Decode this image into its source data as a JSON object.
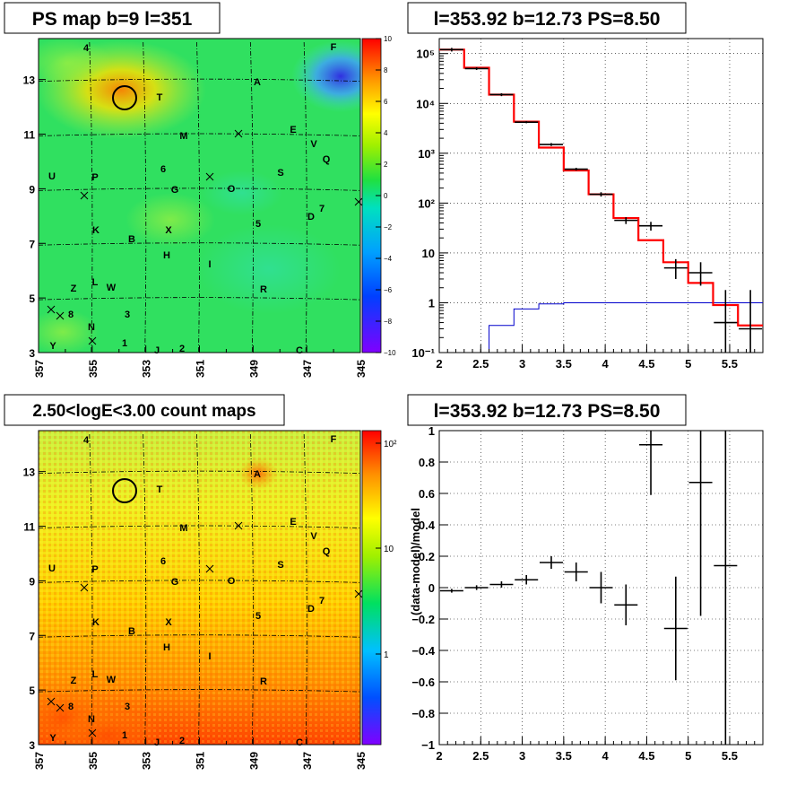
{
  "panels": {
    "map_top": {
      "title": "PS map b=9 l=351",
      "x_ticks": [
        "357",
        "355",
        "353",
        "351",
        "349",
        "347",
        "345"
      ],
      "y_ticks": [
        "3",
        "5",
        "7",
        "9",
        "11",
        "13"
      ],
      "colorbar_ticks": [
        "10",
        "8",
        "6",
        "4",
        "2",
        "0",
        "−2",
        "−4",
        "−6",
        "−8",
        "−10"
      ]
    },
    "map_bottom": {
      "title": "2.50<logE<3.00 count maps",
      "x_ticks": [
        "357",
        "355",
        "353",
        "351",
        "349",
        "347",
        "345"
      ],
      "y_ticks": [
        "3",
        "5",
        "7",
        "9",
        "11",
        "13"
      ],
      "colorbar_ticks": [
        "10²",
        "10",
        "1"
      ]
    },
    "spectrum": {
      "title": "l=353.92 b=12.73 PS=8.50"
    },
    "residual": {
      "title": "l=353.92 b=12.73 PS=8.50",
      "ylabel": "(data-model)/model"
    }
  },
  "source_labels": [
    "4",
    "F",
    "A",
    "T",
    "M",
    "E",
    "V",
    "Q",
    "6",
    "S",
    "G",
    "O",
    "U",
    "P",
    "7",
    "D",
    "5",
    "K",
    "X",
    "B",
    "H",
    "I",
    "Z",
    "L",
    "W",
    "R",
    "8",
    "3",
    "N",
    "Y",
    "1",
    "J",
    "2",
    "C"
  ],
  "colors": {
    "data": "#000000",
    "model": "#ff0000",
    "background_model": "#0000cc"
  },
  "chart_data": [
    {
      "type": "heatmap",
      "title": "PS map b=9 l=351",
      "xlim": [
        357,
        345
      ],
      "ylim": [
        3,
        14.5
      ],
      "zlim": [
        -10,
        10
      ],
      "colormap": "rainbow",
      "grid": true
    },
    {
      "type": "line",
      "title": "l=353.92 b=12.73 PS=8.50",
      "xlim": [
        2,
        5.9
      ],
      "ylim": [
        0.1,
        200000
      ],
      "ylog": true,
      "grid": true,
      "x_ticks": [
        2,
        2.5,
        3,
        3.5,
        4,
        4.5,
        5,
        5.5
      ],
      "y_ticks": [
        "10⁻¹",
        "1",
        "10",
        "10²",
        "10³",
        "10⁴",
        "10⁵"
      ],
      "series": [
        {
          "name": "data",
          "style": "errorbar",
          "x": [
            2.15,
            2.45,
            2.75,
            3.05,
            3.35,
            3.65,
            3.95,
            4.25,
            4.55,
            4.85,
            5.15,
            5.45,
            5.75
          ],
          "y": [
            120000,
            50000,
            15000,
            4200,
            1500,
            480,
            150,
            45,
            35,
            5,
            4,
            0.4,
            0.3
          ],
          "y_low": [
            110000,
            47000,
            14000,
            4000,
            1400,
            450,
            135,
            38,
            28,
            3,
            2.2,
            0.01,
            0.01
          ],
          "y_high": [
            130000,
            53000,
            16000,
            4400,
            1600,
            510,
            165,
            52,
            42,
            7.5,
            6.5,
            1.8,
            1.8
          ]
        },
        {
          "name": "model",
          "style": "step",
          "edges": [
            2,
            2.3,
            2.6,
            2.9,
            3.2,
            3.5,
            3.8,
            4.1,
            4.4,
            4.7,
            5.0,
            5.3,
            5.6,
            5.9
          ],
          "y": [
            120000,
            52000,
            15000,
            4300,
            1300,
            450,
            150,
            50,
            18,
            6.5,
            2.5,
            0.9,
            0.35
          ]
        },
        {
          "name": "background",
          "style": "step",
          "edges": [
            2.6,
            2.9,
            3.2,
            3.5,
            5.9
          ],
          "y": [
            0.35,
            0.75,
            0.95,
            1.0
          ]
        }
      ]
    },
    {
      "type": "heatmap",
      "title": "2.50<logE<3.00 count maps",
      "xlim": [
        357,
        345
      ],
      "ylim": [
        3,
        14.5
      ],
      "zlog": true,
      "colormap": "rainbow",
      "grid": true
    },
    {
      "type": "scatter",
      "title": "l=353.92 b=12.73 PS=8.50",
      "ylabel": "(data-model)/model",
      "xlim": [
        2,
        5.9
      ],
      "ylim": [
        -1,
        1
      ],
      "grid": true,
      "x_ticks": [
        2,
        2.5,
        3,
        3.5,
        4,
        4.5,
        5,
        5.5
      ],
      "y_ticks": [
        -1,
        -0.8,
        -0.6,
        -0.4,
        -0.2,
        0,
        0.2,
        0.4,
        0.6,
        0.8,
        1
      ],
      "series": [
        {
          "name": "residual",
          "style": "errorbar",
          "x": [
            2.15,
            2.45,
            2.75,
            3.05,
            3.35,
            3.65,
            3.95,
            4.25,
            4.55,
            4.85,
            5.15,
            5.45
          ],
          "y": [
            -0.02,
            0.0,
            0.02,
            0.05,
            0.16,
            0.1,
            0.0,
            -0.11,
            0.91,
            -0.26,
            0.67,
            0.14
          ],
          "err": [
            0.012,
            0.015,
            0.02,
            0.03,
            0.04,
            0.06,
            0.1,
            0.13,
            0.32,
            0.33,
            0.85,
            1.2
          ]
        }
      ]
    }
  ]
}
